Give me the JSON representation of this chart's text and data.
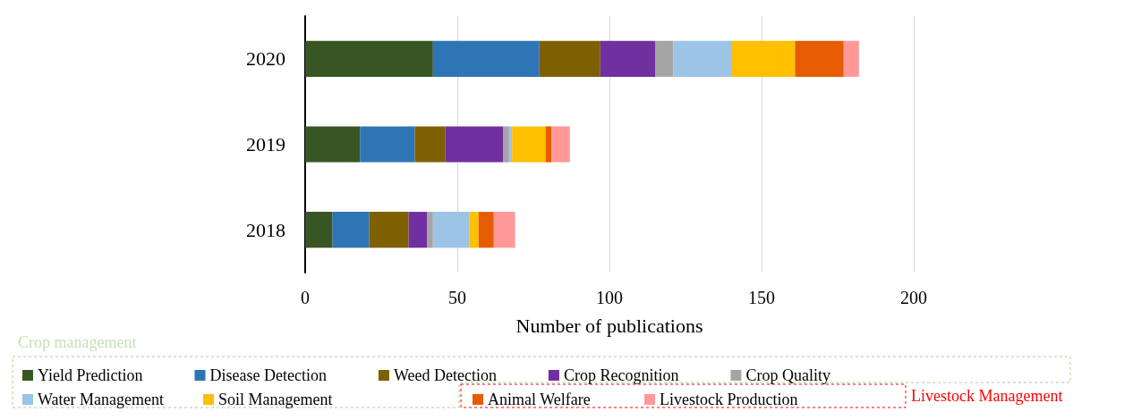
{
  "chart_data": {
    "type": "bar",
    "orientation": "horizontal",
    "stacked": true,
    "xlabel": "Number of publications",
    "categories": [
      "2020",
      "2019",
      "2018"
    ],
    "series": [
      {
        "name": "Yield Prediction",
        "color": "#375623",
        "values": [
          42,
          18,
          9
        ]
      },
      {
        "name": "Disease Detection",
        "color": "#2e75b6",
        "values": [
          35,
          18,
          12
        ]
      },
      {
        "name": "Weed Detection",
        "color": "#7f6000",
        "values": [
          20,
          10,
          13
        ]
      },
      {
        "name": "Crop Recognition",
        "color": "#7030a0",
        "values": [
          18,
          19,
          6
        ]
      },
      {
        "name": "Crop Quality",
        "color": "#a5a5a5",
        "values": [
          6,
          2,
          2
        ]
      },
      {
        "name": "Water Management",
        "color": "#9dc3e6",
        "values": [
          19,
          1,
          12
        ]
      },
      {
        "name": "Soil Management",
        "color": "#ffc000",
        "values": [
          21,
          11,
          3
        ]
      },
      {
        "name": "Animal Welfare",
        "color": "#e65c00",
        "values": [
          16,
          2,
          5
        ]
      },
      {
        "name": "Livestock Production",
        "color": "#ff9999",
        "values": [
          5,
          6,
          7
        ]
      }
    ],
    "xlim": [
      0,
      200
    ],
    "xticks": [
      0,
      50,
      100,
      150,
      200
    ],
    "grid": "x",
    "legend": "bottom",
    "annotations": [
      "Crop management",
      "Livestock Management"
    ]
  }
}
